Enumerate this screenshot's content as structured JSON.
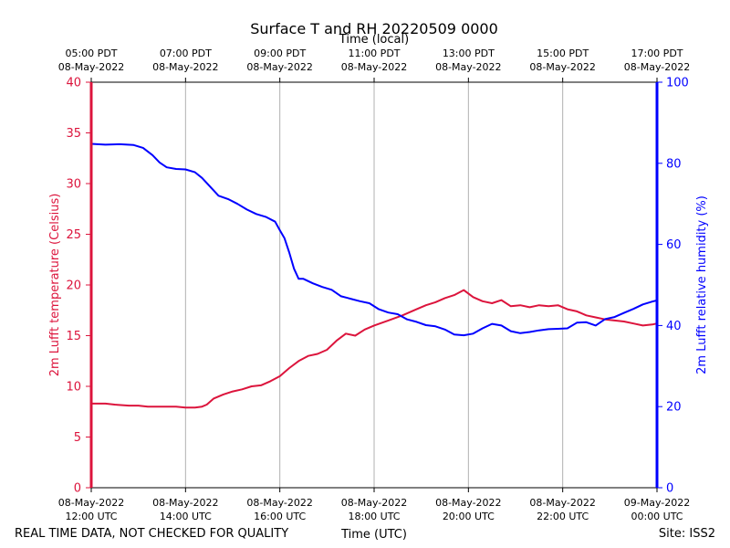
{
  "chart_data": {
    "type": "line",
    "title": "Surface T and RH 20220509 0000",
    "top_axis_label": "Time (local)",
    "xlabel": "Time (UTC)",
    "ylabel_left": "2m Lufft temperature (Celsius)",
    "ylabel_right": "2m Lufft relative humidity (%)",
    "footer_left": "REAL TIME DATA, NOT CHECKED FOR QUALITY",
    "footer_right": "Site: ISS2",
    "x_range_hours": [
      0,
      12
    ],
    "ylim_left": [
      0,
      40
    ],
    "ylim_right": [
      0,
      100
    ],
    "yticks_left": [
      0,
      5,
      10,
      15,
      20,
      25,
      30,
      35,
      40
    ],
    "yticks_right": [
      0,
      20,
      40,
      60,
      80,
      100
    ],
    "grid_x": true,
    "bottom_ticks": [
      {
        "h": 0,
        "line1": "08-May-2022",
        "line2": "12:00 UTC"
      },
      {
        "h": 2,
        "line1": "08-May-2022",
        "line2": "14:00 UTC"
      },
      {
        "h": 4,
        "line1": "08-May-2022",
        "line2": "16:00 UTC"
      },
      {
        "h": 6,
        "line1": "08-May-2022",
        "line2": "18:00 UTC"
      },
      {
        "h": 8,
        "line1": "08-May-2022",
        "line2": "20:00 UTC"
      },
      {
        "h": 10,
        "line1": "08-May-2022",
        "line2": "22:00 UTC"
      },
      {
        "h": 12,
        "line1": "09-May-2022",
        "line2": "00:00 UTC"
      }
    ],
    "top_ticks": [
      {
        "h": 0,
        "line1": "05:00 PDT",
        "line2": "08-May-2022"
      },
      {
        "h": 2,
        "line1": "07:00 PDT",
        "line2": "08-May-2022"
      },
      {
        "h": 4,
        "line1": "09:00 PDT",
        "line2": "08-May-2022"
      },
      {
        "h": 6,
        "line1": "11:00 PDT",
        "line2": "08-May-2022"
      },
      {
        "h": 8,
        "line1": "13:00 PDT",
        "line2": "08-May-2022"
      },
      {
        "h": 10,
        "line1": "15:00 PDT",
        "line2": "08-May-2022"
      },
      {
        "h": 12,
        "line1": "17:00 PDT",
        "line2": "08-May-2022"
      }
    ],
    "colors": {
      "temperature": "#dc143c",
      "humidity": "#0000ff",
      "grid": "#b0b0b0",
      "axis": "#000000"
    },
    "series": [
      {
        "name": "Temperature",
        "axis": "left",
        "color": "#dc143c",
        "x": [
          0,
          0.3,
          0.5,
          0.8,
          1,
          1.2,
          1.4,
          1.6,
          1.8,
          2,
          2.2,
          2.35,
          2.45,
          2.6,
          2.8,
          3,
          3.2,
          3.4,
          3.6,
          3.8,
          4,
          4.2,
          4.4,
          4.6,
          4.8,
          5,
          5.2,
          5.4,
          5.6,
          5.8,
          6,
          6.3,
          6.6,
          6.9,
          7.1,
          7.3,
          7.5,
          7.7,
          7.9,
          8.1,
          8.3,
          8.5,
          8.7,
          8.9,
          9.1,
          9.3,
          9.5,
          9.7,
          9.9,
          10.1,
          10.3,
          10.5,
          10.7,
          10.9,
          11.1,
          11.3,
          11.5,
          11.7,
          11.9,
          12
        ],
        "values": [
          8.3,
          8.3,
          8.2,
          8.1,
          8.1,
          8.0,
          8.0,
          8.0,
          8.0,
          7.9,
          7.9,
          8.0,
          8.2,
          8.8,
          9.2,
          9.5,
          9.7,
          10.0,
          10.1,
          10.5,
          11.0,
          11.8,
          12.5,
          13.0,
          13.2,
          13.6,
          14.5,
          15.2,
          15.0,
          15.6,
          16.0,
          16.5,
          17.0,
          17.6,
          18.0,
          18.3,
          18.7,
          19.0,
          19.5,
          18.8,
          18.4,
          18.2,
          18.5,
          17.9,
          18.0,
          17.8,
          18.0,
          17.9,
          18.0,
          17.6,
          17.4,
          17.0,
          16.8,
          16.6,
          16.5,
          16.4,
          16.2,
          16.0,
          16.1,
          16.2
        ]
      },
      {
        "name": "Relative humidity",
        "axis": "right",
        "color": "#0000ff",
        "x": [
          0,
          0.3,
          0.6,
          0.9,
          1.1,
          1.3,
          1.45,
          1.6,
          1.8,
          2,
          2.2,
          2.35,
          2.5,
          2.7,
          2.9,
          3.1,
          3.3,
          3.5,
          3.7,
          3.9,
          4,
          4.1,
          4.2,
          4.3,
          4.4,
          4.5,
          4.7,
          4.9,
          5.1,
          5.3,
          5.5,
          5.7,
          5.9,
          6.1,
          6.3,
          6.5,
          6.7,
          6.9,
          7.1,
          7.3,
          7.5,
          7.7,
          7.9,
          8.1,
          8.3,
          8.5,
          8.7,
          8.9,
          9.1,
          9.3,
          9.5,
          9.7,
          9.9,
          10.1,
          10.3,
          10.5,
          10.7,
          10.9,
          11.1,
          11.3,
          11.5,
          11.7,
          11.9,
          12
        ],
        "values": [
          84.8,
          84.6,
          84.7,
          84.5,
          83.8,
          82.0,
          80.2,
          79.0,
          78.6,
          78.5,
          77.8,
          76.4,
          74.5,
          72.0,
          71.2,
          70.0,
          68.6,
          67.5,
          66.8,
          65.6,
          63.5,
          61.5,
          58.0,
          54.0,
          51.5,
          51.5,
          50.4,
          49.5,
          48.8,
          47.2,
          46.6,
          46.0,
          45.5,
          44.0,
          43.2,
          42.8,
          41.5,
          40.9,
          40.1,
          39.8,
          39.0,
          37.8,
          37.6,
          38.0,
          39.3,
          40.4,
          40.0,
          38.6,
          38.1,
          38.4,
          38.8,
          39.1,
          39.2,
          39.3,
          40.7,
          40.8,
          40.0,
          41.6,
          42.1,
          43.1,
          44.1,
          45.2,
          45.9,
          46.2
        ]
      }
    ]
  }
}
